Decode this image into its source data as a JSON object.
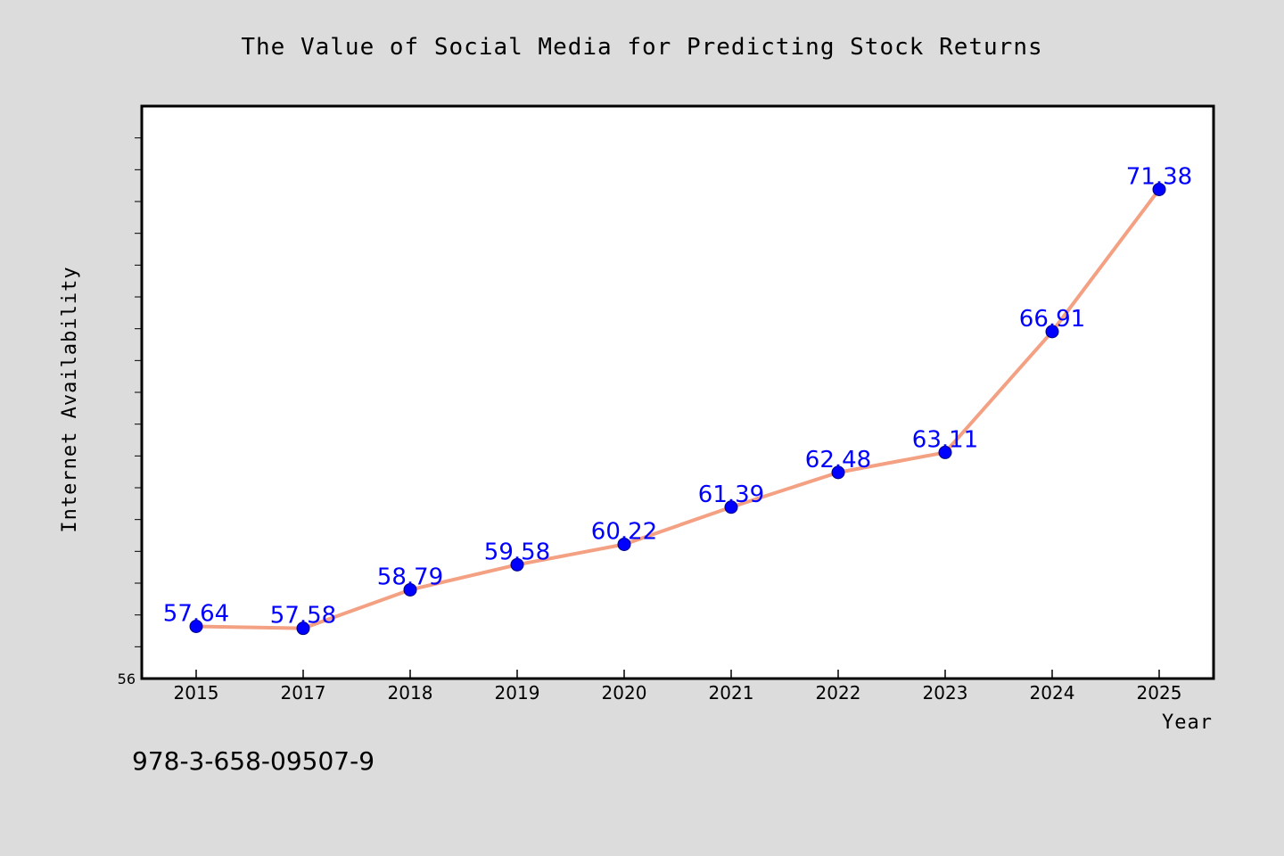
{
  "chart_data": {
    "type": "line",
    "title": "The Value of Social Media for Predicting Stock Returns",
    "xlabel": "Year",
    "ylabel": "Internet Availability",
    "categories": [
      "2015",
      "2017",
      "2018",
      "2019",
      "2020",
      "2021",
      "2022",
      "2023",
      "2024",
      "2025"
    ],
    "series": [
      {
        "values": [
          57.64,
          57.58,
          58.79,
          59.58,
          60.22,
          61.39,
          62.48,
          63.11,
          66.91,
          71.38
        ],
        "labels": [
          "57.64",
          "57.58",
          "58.79",
          "59.58",
          "60.22",
          "61.39",
          "62.48",
          "63.11",
          "66.91",
          "71.38"
        ]
      }
    ],
    "ylim": [
      56,
      74
    ],
    "yticks_labeled": [
      "56"
    ],
    "grid": false,
    "legend": "none",
    "colors": {
      "line": "#f4a082",
      "marker": "#0000ff",
      "marker_edge": "#000080",
      "data_label": "#0000ff",
      "background": "#dcdcdc",
      "plot_bg": "#ffffff"
    }
  },
  "footer_text": "978-3-658-09507-9"
}
